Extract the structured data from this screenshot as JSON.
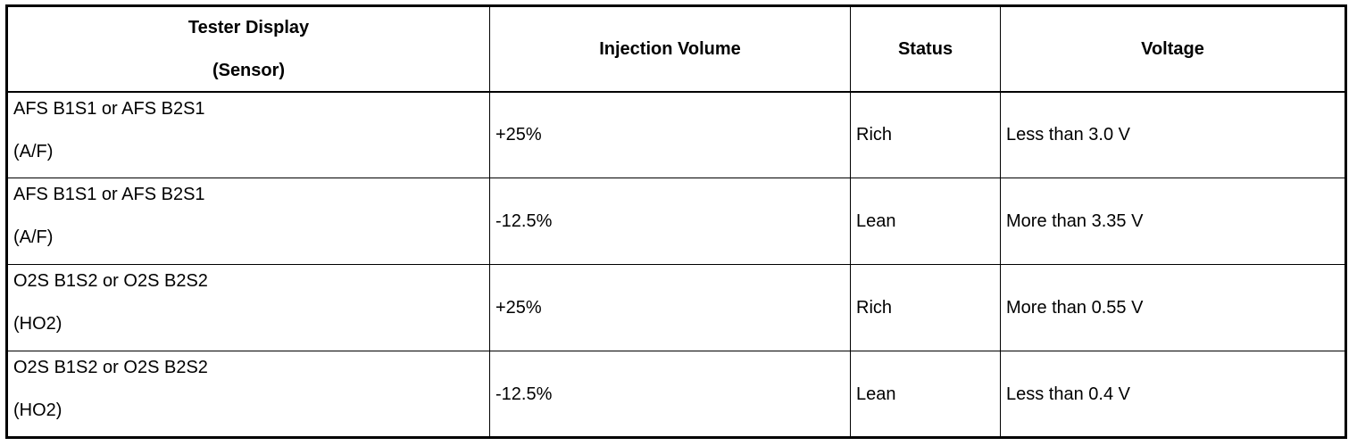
{
  "table": {
    "headers": {
      "sensor_line1": "Tester Display",
      "sensor_line2": "(Sensor)",
      "injection": "Injection Volume",
      "status": "Status",
      "voltage": "Voltage"
    },
    "rows": [
      {
        "sensor": "AFS B1S1 or AFS B2S1",
        "sensor_type": "(A/F)",
        "injection": "+25%",
        "status": "Rich",
        "voltage": "Less than 3.0 V"
      },
      {
        "sensor": "AFS B1S1 or AFS B2S1",
        "sensor_type": "(A/F)",
        "injection": "-12.5%",
        "status": "Lean",
        "voltage": "More than 3.35 V"
      },
      {
        "sensor": "O2S B1S2 or O2S B2S2",
        "sensor_type": "(HO2)",
        "injection": "+25%",
        "status": "Rich",
        "voltage": "More than 0.55 V"
      },
      {
        "sensor": "O2S B1S2 or O2S B2S2",
        "sensor_type": "(HO2)",
        "injection": "-12.5%",
        "status": "Lean",
        "voltage": "Less than 0.4 V"
      }
    ]
  }
}
